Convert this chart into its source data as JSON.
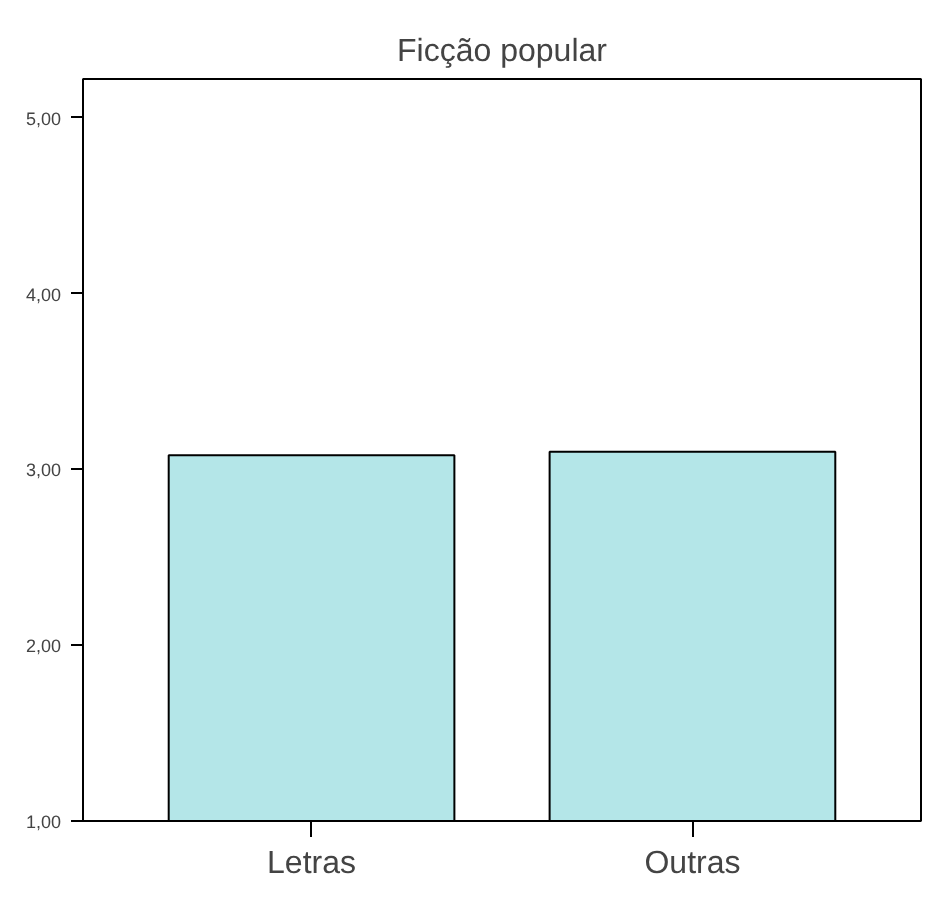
{
  "chart_data": {
    "type": "bar",
    "title": "Ficção popular",
    "categories": [
      "Letras",
      "Outras"
    ],
    "values": [
      3.08,
      3.1
    ],
    "color": "#b4e6e8",
    "ylim": [
      1.0,
      5.22
    ],
    "yticks": [
      {
        "value": 1,
        "label": "1,00"
      },
      {
        "value": 2,
        "label": "2,00"
      },
      {
        "value": 3,
        "label": "3,00"
      },
      {
        "value": 4,
        "label": "4,00"
      },
      {
        "value": 5,
        "label": "5,00"
      }
    ],
    "grid": false
  }
}
